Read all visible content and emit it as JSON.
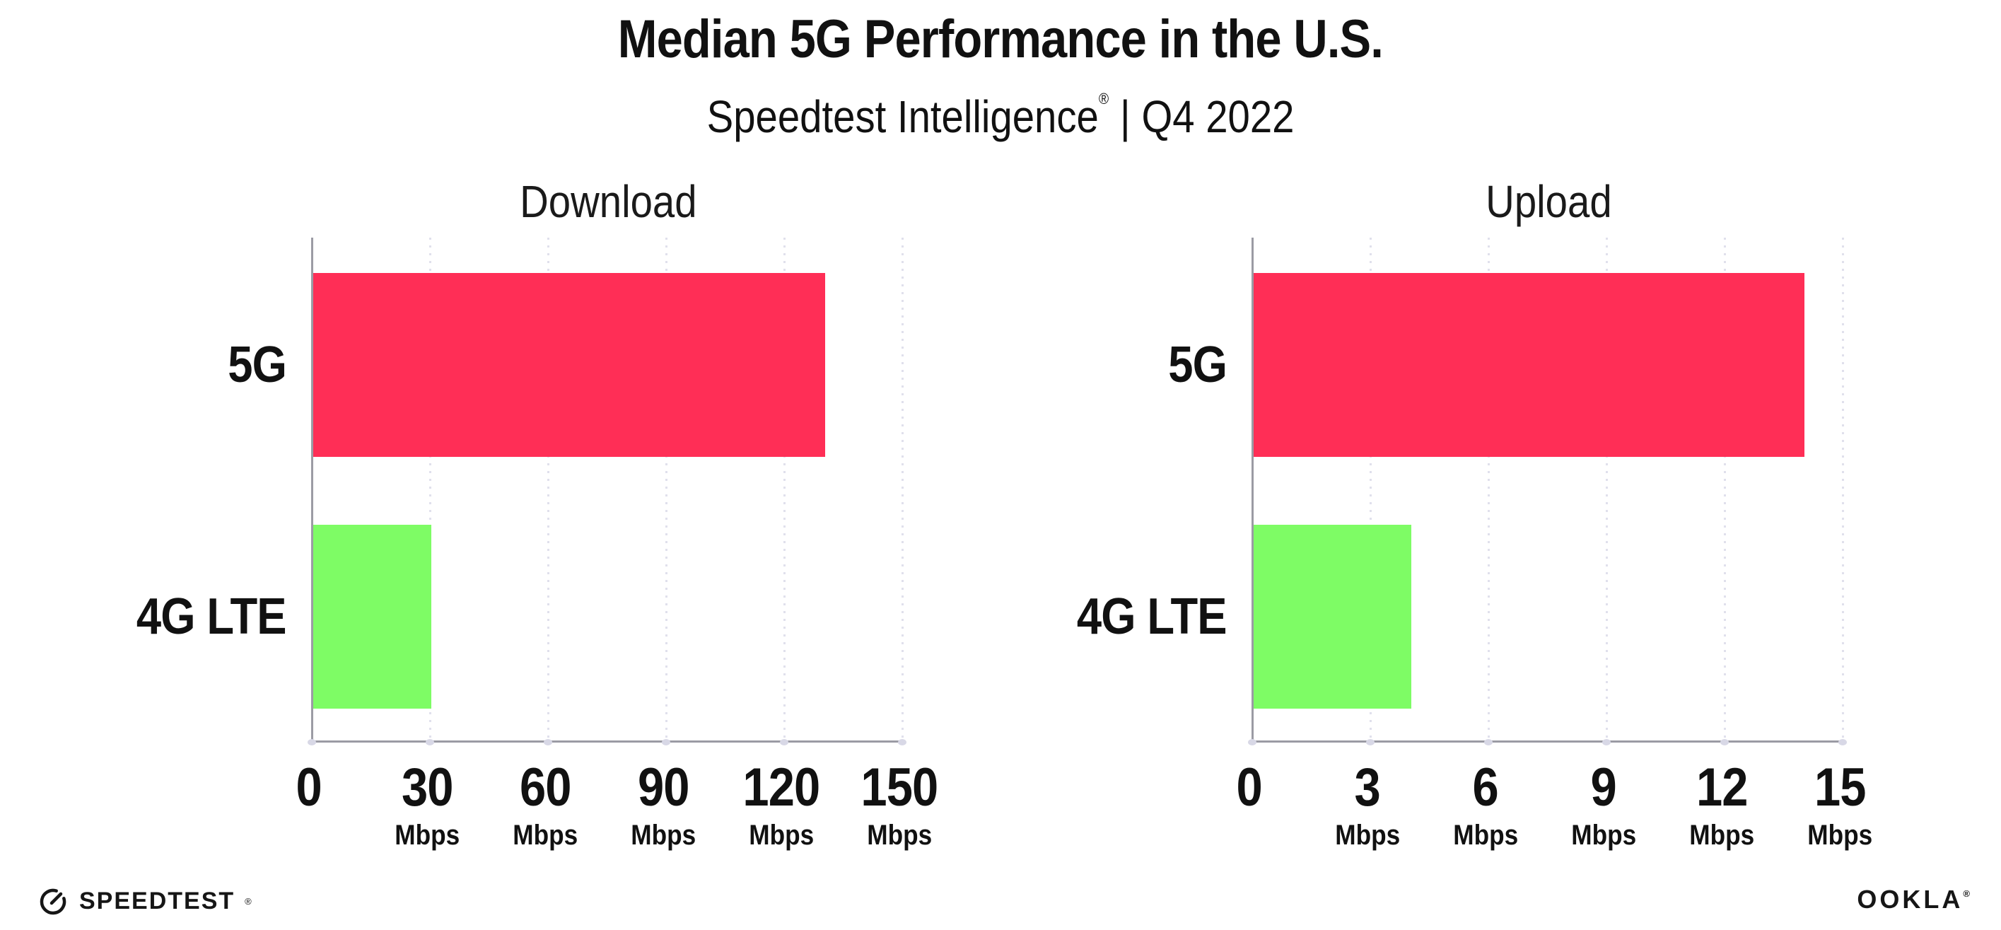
{
  "title": "Median 5G Performance in the U.S.",
  "subtitle": {
    "product": "Speedtest Intelligence",
    "registered": "®",
    "divider": "|",
    "quarter": "Q4 2022"
  },
  "branding": {
    "speedtest_label": "SPEEDTEST",
    "speedtest_mark": "®",
    "speedtest_icon": "gauge-icon",
    "ookla_label": "OOKLA",
    "ookla_mark": "®"
  },
  "colors": {
    "bar_5g": "#ff2e56",
    "bar_4g_lte": "#7efc65",
    "gridline": "#e0e0ec",
    "axis": "#9b9ba4",
    "tick_dot": "#d8d8e6",
    "text": "#111111"
  },
  "chart_data": [
    {
      "type": "bar",
      "orientation": "horizontal",
      "title": "Download",
      "categories": [
        "5G",
        "4G LTE"
      ],
      "values": [
        130,
        30
      ],
      "unit": "Mbps",
      "xlim": [
        0,
        150
      ],
      "xticks": [
        0,
        30,
        60,
        90,
        120,
        150
      ],
      "colors": [
        "#ff2e56",
        "#7efc65"
      ],
      "grid": "vertical-dotted",
      "legend": "none"
    },
    {
      "type": "bar",
      "orientation": "horizontal",
      "title": "Upload",
      "categories": [
        "5G",
        "4G LTE"
      ],
      "values": [
        14,
        4
      ],
      "unit": "Mbps",
      "xlim": [
        0,
        15
      ],
      "xticks": [
        0,
        3,
        6,
        9,
        12,
        15
      ],
      "colors": [
        "#ff2e56",
        "#7efc65"
      ],
      "grid": "vertical-dotted",
      "legend": "none"
    }
  ]
}
